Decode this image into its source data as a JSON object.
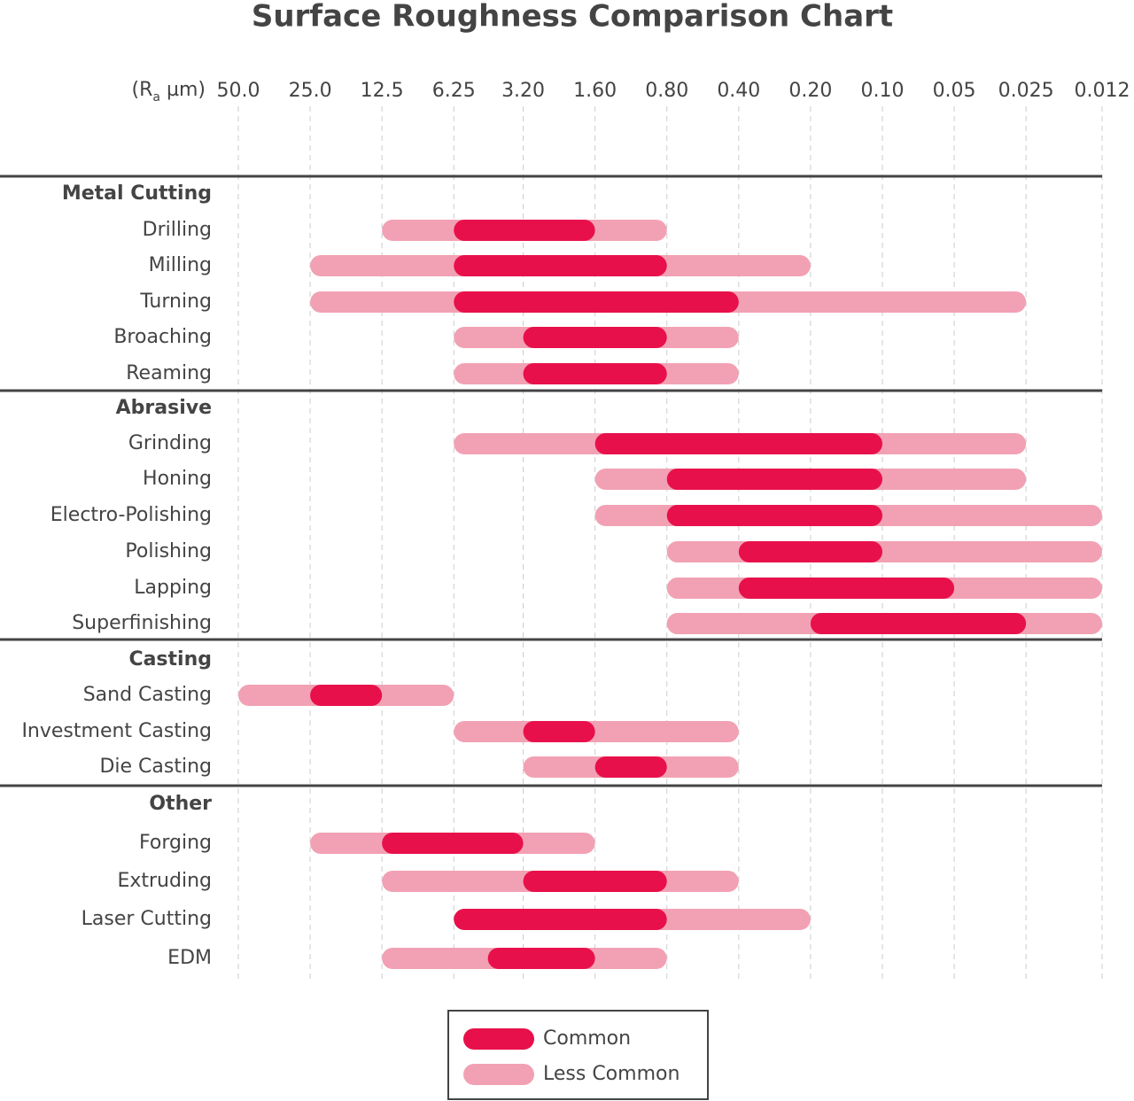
{
  "chart_data": {
    "type": "range-bar",
    "title": "Surface Roughness Comparison Chart",
    "x_label": [
      "(R",
      "a",
      " µm)"
    ],
    "log_x": true,
    "xlim": [
      50,
      0.012
    ],
    "xticks": [
      {
        "value": 50,
        "label": "50.0"
      },
      {
        "value": 25,
        "label": "25.0"
      },
      12.5,
      6.25,
      {
        "value": 3.2,
        "label": "3.20"
      },
      {
        "value": 1.6,
        "label": "1.60"
      },
      {
        "value": 0.8,
        "label": "0.80"
      },
      {
        "value": 0.4,
        "label": "0.40"
      },
      {
        "value": 0.2,
        "label": "0.20"
      },
      {
        "value": 0.1,
        "label": "0.10"
      },
      0.05,
      0.025,
      0.012
    ],
    "grid": true,
    "legend": [
      {
        "name": "Common",
        "color": "#e8104a"
      },
      {
        "name": "Less Common",
        "color": "#f2a1b4"
      }
    ],
    "groups": [
      {
        "name": "Metal Cutting",
        "categories": [
          "Drilling",
          "Milling",
          "Turning",
          "Broaching",
          "Reaming"
        ],
        "less_common": [
          [
            12.5,
            0.8
          ],
          [
            25,
            0.2
          ],
          [
            25,
            0.025
          ],
          [
            6.25,
            0.4
          ],
          [
            6.25,
            0.4
          ]
        ],
        "common": [
          [
            6.25,
            1.6
          ],
          [
            6.25,
            0.8
          ],
          [
            6.25,
            0.4
          ],
          [
            3.2,
            0.8
          ],
          [
            3.2,
            0.8
          ]
        ]
      },
      {
        "name": "Abrasive",
        "categories": [
          "Grinding",
          "Honing",
          "Electro-Polishing",
          "Polishing",
          "Lapping",
          "Superfinishing"
        ],
        "less_common": [
          [
            6.25,
            0.025
          ],
          [
            1.6,
            0.025
          ],
          [
            1.6,
            0.012
          ],
          [
            0.8,
            0.012
          ],
          [
            0.8,
            0.012
          ],
          [
            0.8,
            0.012
          ]
        ],
        "common": [
          [
            1.6,
            0.1
          ],
          [
            0.8,
            0.1
          ],
          [
            0.8,
            0.1
          ],
          [
            0.4,
            0.1
          ],
          [
            0.4,
            0.05
          ],
          [
            0.2,
            0.025
          ]
        ]
      },
      {
        "name": "Casting",
        "categories": [
          "Sand Casting",
          "Investment Casting",
          "Die Casting"
        ],
        "less_common": [
          [
            50,
            6.25
          ],
          [
            6.25,
            0.4
          ],
          [
            3.2,
            0.4
          ]
        ],
        "common": [
          [
            25,
            12.5
          ],
          [
            3.2,
            1.6
          ],
          [
            1.6,
            0.8
          ]
        ]
      },
      {
        "name": "Other",
        "categories": [
          "Forging",
          "Extruding",
          "Laser Cutting",
          "EDM"
        ],
        "less_common": [
          [
            25,
            1.6
          ],
          [
            12.5,
            0.4
          ],
          [
            6.25,
            0.2
          ],
          [
            12.5,
            0.8
          ]
        ],
        "common": [
          [
            12.5,
            3.2
          ],
          [
            3.2,
            0.8
          ],
          [
            6.25,
            0.8
          ],
          [
            4.5,
            1.6
          ]
        ]
      }
    ]
  }
}
